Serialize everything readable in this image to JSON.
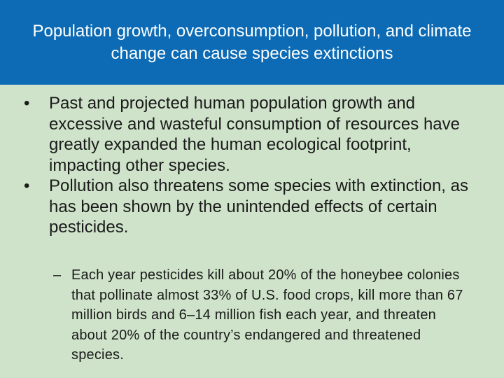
{
  "slide": {
    "title": "Population growth, overconsumption, pollution, and climate change can cause species extinctions",
    "bullets": [
      {
        "marker": "•",
        "text": "Past and projected human population growth and excessive and wasteful consumption of resources have greatly expanded the human ecological footprint, impacting other species."
      },
      {
        "marker": "•",
        "text": "Pollution also threatens some species with extinction, as has been shown by the unintended effects of certain pesticides."
      }
    ],
    "sub_bullets": [
      {
        "marker": "–",
        "text": "Each year pesticides kill about 20% of the honeybee colonies that pollinate almost 33% of U.S. food crops, kill more than 67 million birds and 6–14 million fish each year, and threaten about 20% of the country’s endangered and threatened species."
      }
    ]
  },
  "colors": {
    "title_background": "#0c6bb4",
    "body_background": "#cfe3ca",
    "title_text": "#ffffff",
    "body_text": "#1a1a1a"
  }
}
